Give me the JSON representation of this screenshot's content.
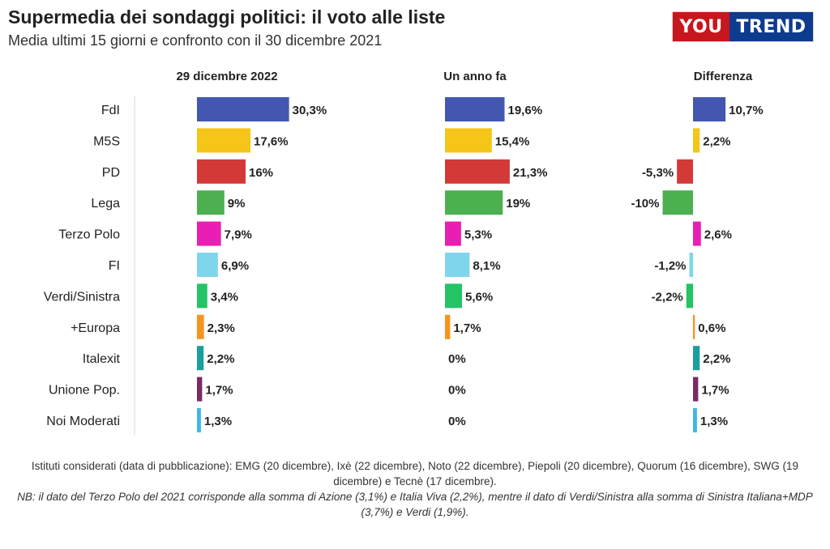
{
  "header": {
    "title": "Supermedia dei sondaggi politici: il voto alle liste",
    "subtitle": "Media ultimi 15 giorni e confronto con il 30 dicembre 2021"
  },
  "logo": {
    "part1": "YOU",
    "part2": "TREND",
    "color1": "#c8161e",
    "color2": "#0d3b8f"
  },
  "chart_data": {
    "type": "bar",
    "orientation": "horizontal",
    "categories": [
      "FdI",
      "M5S",
      "PD",
      "Lega",
      "Terzo Polo",
      "FI",
      "Verdi/Sinistra",
      "+Europa",
      "Italexit",
      "Unione Pop.",
      "Noi Moderati"
    ],
    "colors": [
      "#4457b0",
      "#f5c518",
      "#d33a37",
      "#4caf50",
      "#e91eb3",
      "#7fd6ec",
      "#24c466",
      "#f7941d",
      "#1a9e9e",
      "#7b2a6b",
      "#3fb8e0"
    ],
    "panels": [
      {
        "title": "29 dicembre 2022",
        "values": [
          30.3,
          17.6,
          16,
          9,
          7.9,
          6.9,
          3.4,
          2.3,
          2.2,
          1.7,
          1.3
        ],
        "labels": [
          "30,3%",
          "17,6%",
          "16%",
          "9%",
          "7,9%",
          "6,9%",
          "3,4%",
          "2,3%",
          "2,2%",
          "1,7%",
          "1,3%"
        ]
      },
      {
        "title": "Un anno fa",
        "values": [
          19.6,
          15.4,
          21.3,
          19,
          5.3,
          8.1,
          5.6,
          1.7,
          0,
          0,
          0
        ],
        "labels": [
          "19,6%",
          "15,4%",
          "21,3%",
          "19%",
          "5,3%",
          "8,1%",
          "5,6%",
          "1,7%",
          "0%",
          "0%",
          "0%"
        ]
      },
      {
        "title": "Differenza",
        "values": [
          10.7,
          2.2,
          -5.3,
          -10,
          2.6,
          -1.2,
          -2.2,
          0.6,
          2.2,
          1.7,
          1.3
        ],
        "labels": [
          "10,7%",
          "2,2%",
          "-5,3%",
          "-10%",
          "2,6%",
          "-1,2%",
          "-2,2%",
          "0,6%",
          "2,2%",
          "1,7%",
          "1,3%"
        ]
      }
    ]
  },
  "notes": {
    "sources": "Istituti considerati (data di pubblicazione): EMG (20 dicembre), Ixè (22 dicembre), Noto (22 dicembre), Piepoli (20 dicembre), Quorum (16 dicembre), SWG (19 dicembre) e Tecnè (17 dicembre).",
    "nb": "NB: il dato del Terzo Polo del 2021 corrisponde alla somma di Azione (3,1%) e Italia Viva (2,2%), mentre il dato di Verdi/Sinistra alla somma di Sinistra Italiana+MDP (3,7%) e Verdi (1,9%)."
  }
}
